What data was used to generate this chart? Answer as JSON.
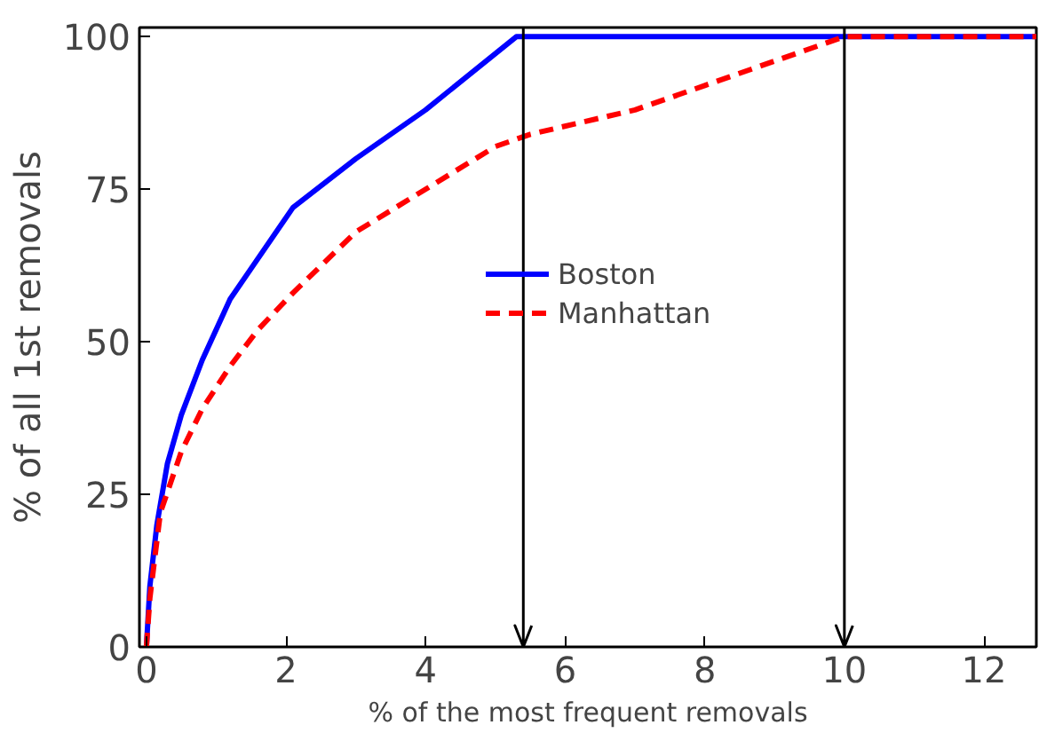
{
  "chart_data": {
    "type": "line",
    "xlabel": "% of the most frequent removals",
    "ylabel": "% of all 1st removals",
    "xlim": [
      -0.1,
      12.75
    ],
    "ylim": [
      0,
      101.5
    ],
    "xticks": [
      0,
      2,
      4,
      6,
      8,
      10,
      12
    ],
    "yticks": [
      0,
      25,
      50,
      75,
      100
    ],
    "grid": false,
    "legend": "right",
    "marker": "none",
    "series": [
      {
        "name": "Boston",
        "color": "#0000ff",
        "line_style": "solid",
        "x": [
          0,
          0.05,
          0.15,
          0.3,
          0.5,
          0.8,
          1.2,
          1.5,
          2.1,
          3,
          4,
          5.3,
          12.75
        ],
        "values": [
          0,
          10,
          20,
          30,
          38,
          47,
          57,
          62,
          72,
          80,
          88,
          100,
          100
        ]
      },
      {
        "name": "Manhattan",
        "color": "#ff0000",
        "line_style": "dashed",
        "x": [
          0,
          0.05,
          0.2,
          0.5,
          0.8,
          1.2,
          1.6,
          2.1,
          3,
          4,
          5,
          5.5,
          7,
          8,
          10,
          12.75
        ],
        "values": [
          0,
          8,
          22,
          32,
          39,
          46,
          52,
          58,
          68,
          75,
          82,
          84,
          88,
          92,
          100,
          100
        ]
      }
    ],
    "ref_lines": [
      {
        "axis": "x",
        "value": 5.4,
        "color": "#000000"
      },
      {
        "axis": "x",
        "value": 10,
        "color": "#000000"
      }
    ]
  }
}
